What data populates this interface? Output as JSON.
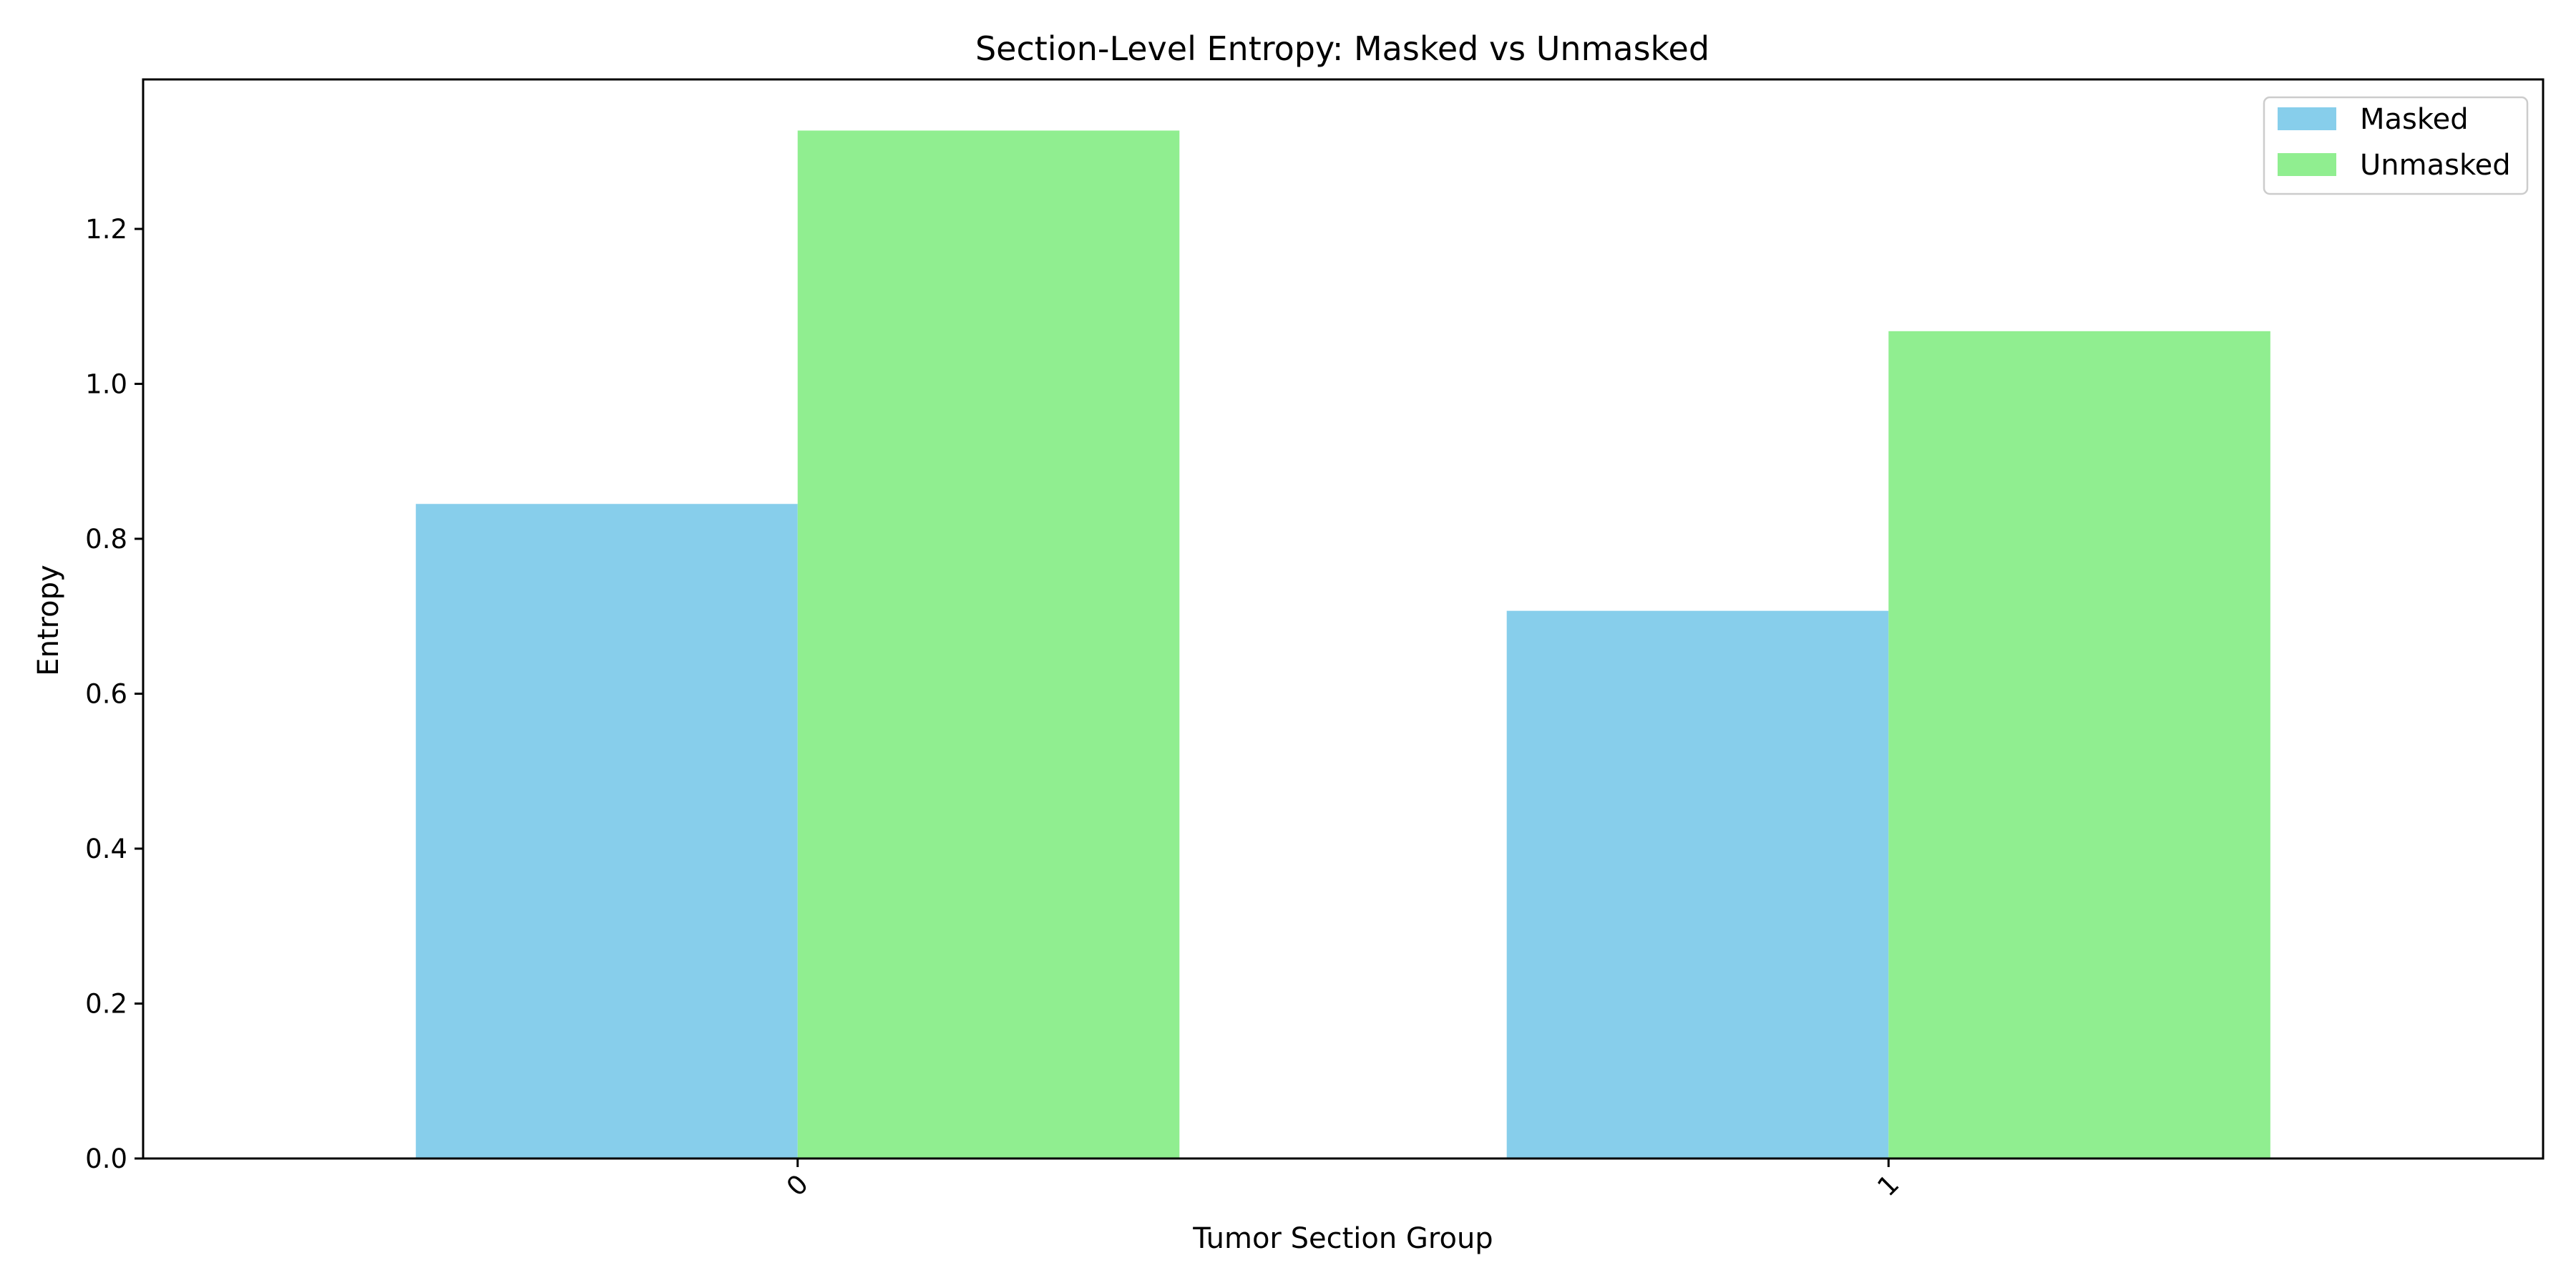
{
  "chart_data": {
    "type": "bar",
    "title": "Section-Level Entropy: Masked vs Unmasked",
    "xlabel": "Tumor Section Group",
    "ylabel": "Entropy",
    "categories": [
      "0",
      "1"
    ],
    "series": [
      {
        "name": "Masked",
        "color": "#87ceeb",
        "values": [
          0.845,
          0.707
        ]
      },
      {
        "name": "Unmasked",
        "color": "#90ee90",
        "values": [
          1.327,
          1.068
        ]
      }
    ],
    "ylim": [
      0.0,
      1.393
    ],
    "yticks": [
      0.0,
      0.2,
      0.4,
      0.6,
      0.8,
      1.0,
      1.2
    ],
    "ytick_labels": [
      "0.0",
      "0.2",
      "0.4",
      "0.6",
      "0.8",
      "1.0",
      "1.2"
    ],
    "xtick_rotation": -45,
    "grid": false,
    "legend_position": "top-right"
  }
}
